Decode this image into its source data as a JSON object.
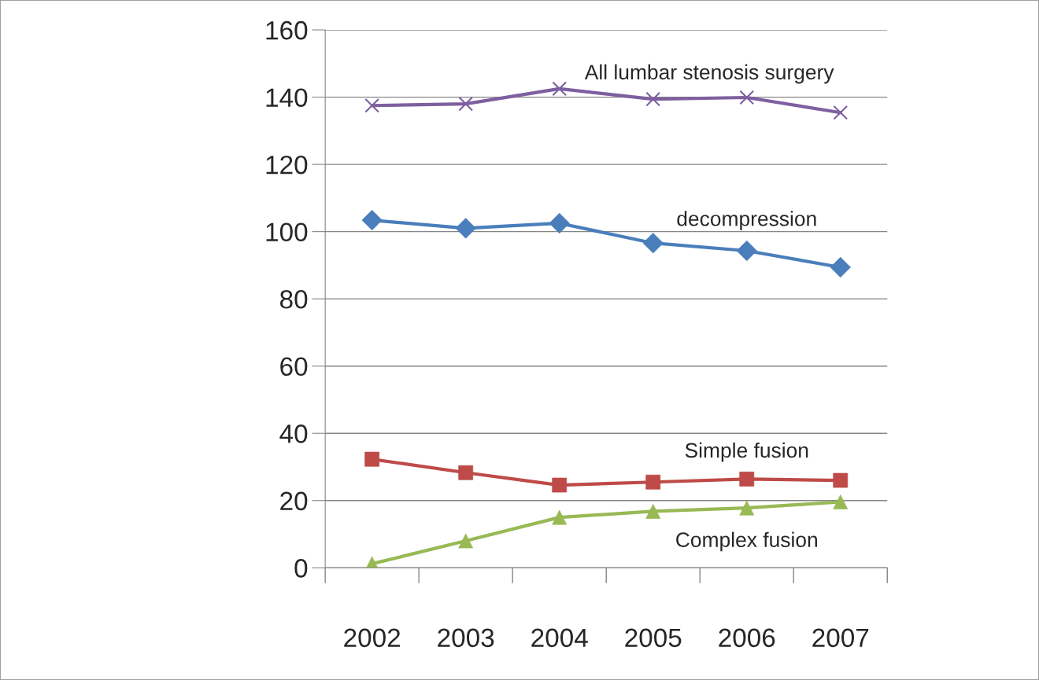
{
  "chart_data": {
    "type": "line",
    "categories": [
      "2002",
      "2003",
      "2004",
      "2005",
      "2006",
      "2007"
    ],
    "series": [
      {
        "name": "All lumbar stenosis surgery",
        "color": "#7e60a0",
        "marker": "cross",
        "values": [
          137.5,
          138,
          142.5,
          139.4,
          139.9,
          135.4
        ]
      },
      {
        "name": "decompression",
        "color": "#4a7ebb",
        "marker": "diamond",
        "values": [
          103.4,
          101,
          102.5,
          96.6,
          94.3,
          89.4
        ]
      },
      {
        "name": "Simple fusion",
        "color": "#be4b48",
        "marker": "square",
        "values": [
          32.3,
          28.3,
          24.6,
          25.5,
          26.4,
          26
        ]
      },
      {
        "name": "Complex fusion",
        "color": "#98b954",
        "marker": "triangle",
        "values": [
          1.2,
          8,
          15,
          16.8,
          17.8,
          19.6
        ]
      }
    ],
    "ylim": [
      0,
      160
    ],
    "yticks": [
      0,
      20,
      40,
      60,
      80,
      100,
      120,
      140,
      160
    ],
    "grid": "y",
    "legend": false,
    "line_style": "solid"
  }
}
